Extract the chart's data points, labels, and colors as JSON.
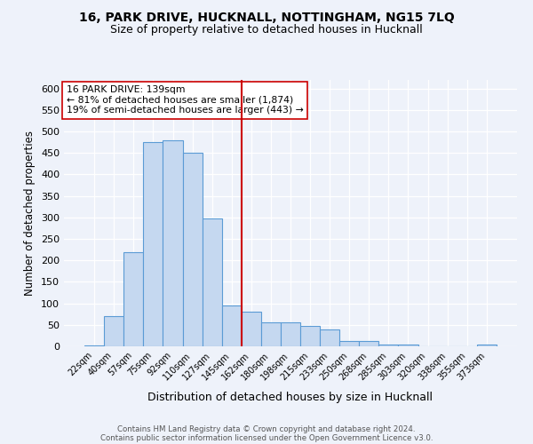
{
  "title1": "16, PARK DRIVE, HUCKNALL, NOTTINGHAM, NG15 7LQ",
  "title2": "Size of property relative to detached houses in Hucknall",
  "xlabel": "Distribution of detached houses by size in Hucknall",
  "ylabel": "Number of detached properties",
  "footnote1": "Contains HM Land Registry data © Crown copyright and database right 2024.",
  "footnote2": "Contains public sector information licensed under the Open Government Licence v3.0.",
  "annotation_title": "16 PARK DRIVE: 139sqm",
  "annotation_line1": "← 81% of detached houses are smaller (1,874)",
  "annotation_line2": "19% of semi-detached houses are larger (443) →",
  "bar_labels": [
    "22sqm",
    "40sqm",
    "57sqm",
    "75sqm",
    "92sqm",
    "110sqm",
    "127sqm",
    "145sqm",
    "162sqm",
    "180sqm",
    "198sqm",
    "215sqm",
    "233sqm",
    "250sqm",
    "268sqm",
    "285sqm",
    "303sqm",
    "320sqm",
    "338sqm",
    "355sqm",
    "373sqm"
  ],
  "bar_values": [
    3,
    70,
    220,
    475,
    480,
    450,
    297,
    95,
    80,
    55,
    55,
    47,
    40,
    13,
    13,
    5,
    5,
    1,
    1,
    1,
    5
  ],
  "bar_color": "#c5d8f0",
  "bar_edge_color": "#5b9bd5",
  "vline_x": 7.5,
  "vline_color": "#cc0000",
  "ylim": [
    0,
    620
  ],
  "yticks": [
    0,
    50,
    100,
    150,
    200,
    250,
    300,
    350,
    400,
    450,
    500,
    550,
    600
  ],
  "bg_color": "#eef2fa",
  "grid_color": "#ffffff",
  "annotation_box_color": "#ffffff",
  "annotation_box_edge": "#cc0000",
  "title1_fontsize": 10,
  "title2_fontsize": 9
}
